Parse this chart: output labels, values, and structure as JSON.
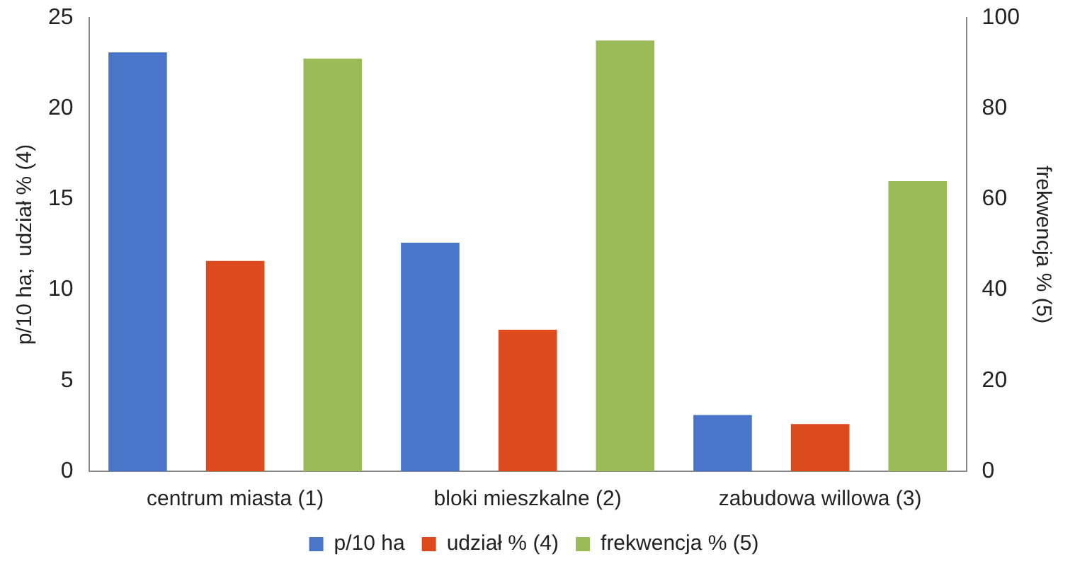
{
  "chart_data": {
    "type": "bar",
    "ylabel": "p/10 ha;  udział % (4)",
    "y2label": "frekwencja % (5)",
    "categories": [
      "centrum miasta (1)",
      "bloki mieszkalne (2)",
      "zabudowa willowa (3)"
    ],
    "series": [
      {
        "name": "p/10 ha",
        "color": "#4a76c9",
        "values": [
          23.1,
          12.6,
          3.1
        ]
      },
      {
        "name": "udział % (4)",
        "color": "#dd4a1e",
        "values": [
          11.6,
          7.8,
          2.6
        ]
      },
      {
        "name": "frekwencja % (5)",
        "color": "#9bbb59",
        "values": [
          91,
          95,
          64
        ],
        "axis": "y2"
      }
    ],
    "ylim": [
      0,
      25
    ],
    "yticks": [
      0,
      5,
      10,
      15,
      20,
      25
    ],
    "y2lim": [
      0,
      100
    ],
    "y2ticks": [
      0,
      20,
      40,
      60,
      80,
      100
    ],
    "grid": false,
    "legend": "bottom"
  }
}
